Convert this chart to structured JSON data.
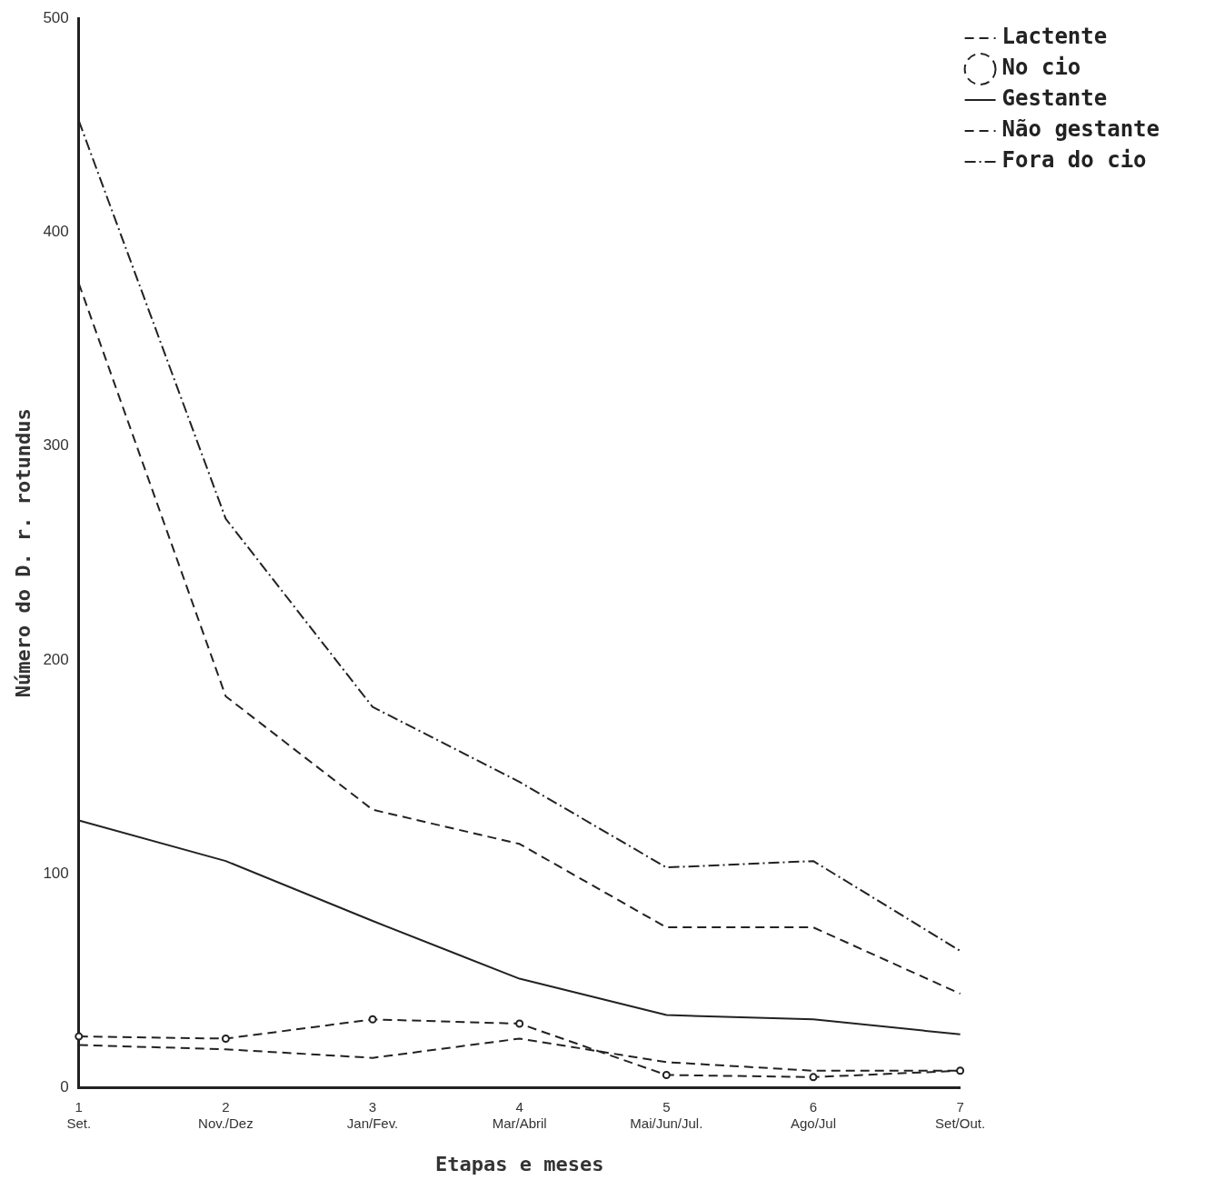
{
  "chart_data": {
    "type": "line",
    "xlabel": "Etapas e meses",
    "ylabel": "Número do D. r. rotundus",
    "categories": [
      "1\nSet.",
      "2\nNov./Dez",
      "3\nJan/Fev.",
      "4\nMar/Abril",
      "5\nMai/Jun/Jul.",
      "6\nAgo/Jul",
      "7\nSet/Out."
    ],
    "ylim": [
      0,
      500
    ],
    "yticks": [
      0,
      100,
      200,
      300,
      400,
      500
    ],
    "grid": false,
    "legend": "right",
    "series": [
      {
        "name": "Lactente",
        "color": "#222222",
        "line_style": "dashed",
        "marker": "none",
        "values": [
          20,
          18,
          14,
          23,
          12,
          8,
          8
        ]
      },
      {
        "name": "No cio",
        "color": "#222222",
        "line_style": "dashed",
        "marker": "circle",
        "values": [
          24,
          23,
          32,
          30,
          6,
          5,
          8
        ]
      },
      {
        "name": "Gestante",
        "color": "#222222",
        "line_style": "solid",
        "marker": "none",
        "values": [
          125,
          106,
          78,
          51,
          34,
          32,
          25
        ]
      },
      {
        "name": "Não gestante",
        "color": "#222222",
        "line_style": "dashed",
        "marker": "none",
        "values": [
          376,
          183,
          130,
          114,
          75,
          75,
          44
        ]
      },
      {
        "name": "Fora do cio",
        "color": "#222222",
        "line_style": "dotted",
        "marker": "none",
        "values": [
          452,
          266,
          178,
          143,
          103,
          106,
          64
        ]
      }
    ]
  }
}
